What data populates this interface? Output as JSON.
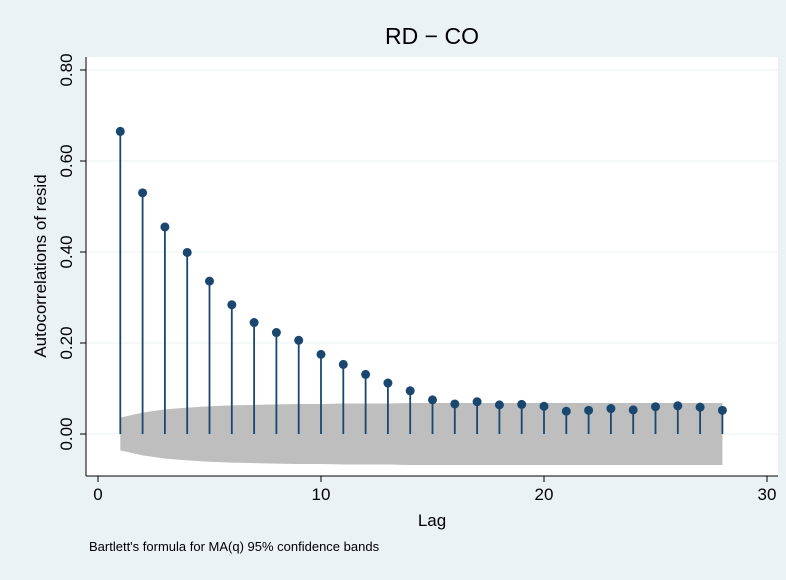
{
  "chart_data": {
    "type": "acf-stem",
    "title": "RD − CO",
    "xlabel": "Lag",
    "ylabel": "Autocorrelations of resid",
    "note": "Bartlett's formula for MA(q) 95% confidence bands",
    "xlim": [
      0,
      30
    ],
    "ylim": [
      -0.07,
      0.82
    ],
    "x_ticks": [
      0,
      10,
      20,
      30
    ],
    "x_tick_labels": [
      "0",
      "10",
      "20",
      "30"
    ],
    "y_ticks": [
      0.0,
      0.2,
      0.4,
      0.6,
      0.8
    ],
    "y_tick_labels": [
      "0.00",
      "0.20",
      "0.40",
      "0.60",
      "0.80"
    ],
    "grid": true,
    "lags": [
      1,
      2,
      3,
      4,
      5,
      6,
      7,
      8,
      9,
      10,
      11,
      12,
      13,
      14,
      15,
      16,
      17,
      18,
      19,
      20,
      21,
      22,
      23,
      24,
      25,
      26,
      27,
      28
    ],
    "values": [
      0.665,
      0.53,
      0.455,
      0.399,
      0.336,
      0.284,
      0.245,
      0.223,
      0.206,
      0.175,
      0.153,
      0.131,
      0.112,
      0.095,
      0.075,
      0.066,
      0.071,
      0.064,
      0.065,
      0.061,
      0.05,
      0.052,
      0.056,
      0.053,
      0.06,
      0.062,
      0.059,
      0.052
    ],
    "conf_band": {
      "upper": [
        0.036,
        0.047,
        0.054,
        0.058,
        0.061,
        0.063,
        0.064,
        0.065,
        0.066,
        0.066,
        0.067,
        0.067,
        0.067,
        0.068,
        0.068,
        0.068,
        0.068,
        0.068,
        0.068,
        0.068,
        0.068,
        0.068,
        0.068,
        0.068,
        0.068,
        0.068,
        0.068,
        0.068
      ],
      "lower": [
        -0.036,
        -0.047,
        -0.054,
        -0.058,
        -0.061,
        -0.063,
        -0.064,
        -0.065,
        -0.066,
        -0.066,
        -0.067,
        -0.067,
        -0.067,
        -0.068,
        -0.068,
        -0.068,
        -0.068,
        -0.068,
        -0.068,
        -0.068,
        -0.068,
        -0.068,
        -0.068,
        -0.068,
        -0.068,
        -0.068,
        -0.068,
        -0.068
      ]
    },
    "colors": {
      "page_bg": "#eaf2f3",
      "plot_bg": "#ffffff",
      "series": "#1a476f",
      "band": "#bebebe",
      "grid": "#eaf2f3"
    }
  }
}
